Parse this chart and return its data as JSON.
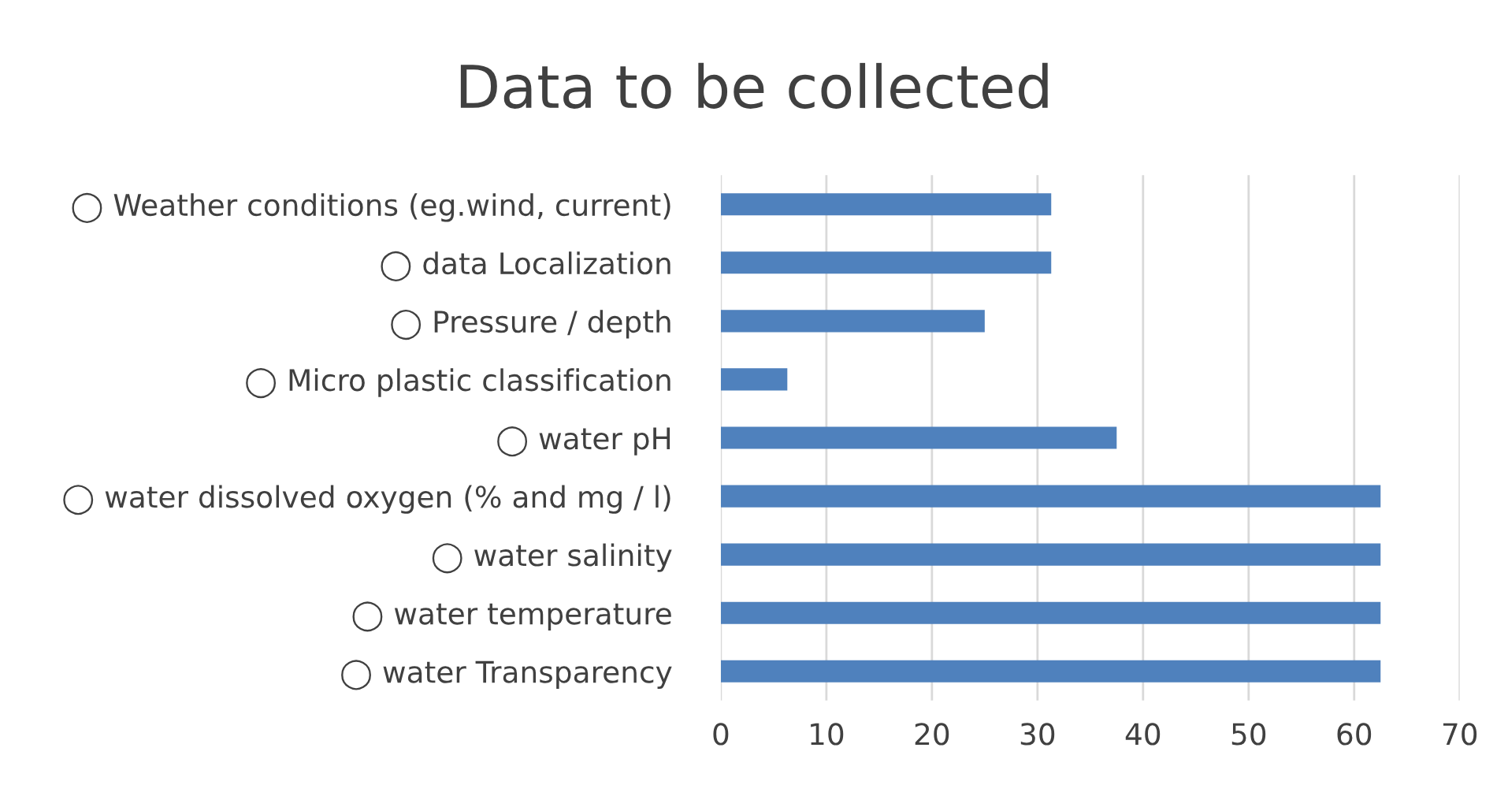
{
  "chart_data": {
    "type": "bar",
    "orientation": "horizontal",
    "title": "Data to be collected",
    "categories": [
      "◯ Weather conditions (eg.wind, current)",
      "◯ data Localization",
      "◯ Pressure / depth",
      "◯ Micro plastic classification",
      "◯ water pH",
      "◯ water dissolved oxygen (% and mg / l)",
      "◯ water salinity",
      "◯ water temperature",
      "◯ water Transparency"
    ],
    "values": [
      31.3,
      31.3,
      25,
      6.3,
      37.5,
      62.5,
      62.5,
      62.5,
      62.5
    ],
    "color": "#4f81bd",
    "xlim": [
      0,
      70
    ],
    "xticks": [
      0,
      10,
      20,
      30,
      40,
      50,
      60,
      70
    ],
    "grid": "x",
    "legend": false
  }
}
